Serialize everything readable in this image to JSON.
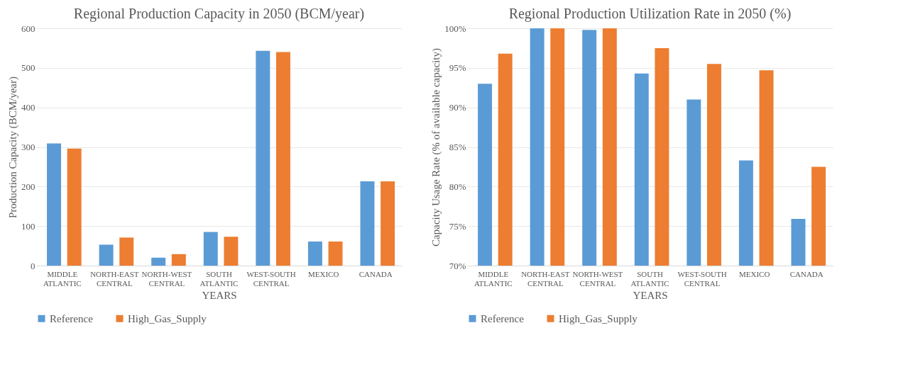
{
  "chart_data": [
    {
      "type": "bar",
      "title": "Regional Production Capacity in 2050 (BCM/year)",
      "xlabel": "YEARS",
      "ylabel": "Production Capacity (BCM/year)",
      "categories": [
        "MIDDLE ATLANTIC",
        "NORTH-EAST CENTRAL",
        "NORTH-WEST CENTRAL",
        "SOUTH ATLANTIC",
        "WEST-SOUTH CENTRAL",
        "MEXICO",
        "CANADA"
      ],
      "series": [
        {
          "name": "Reference",
          "color": "#5b9bd5",
          "values": [
            309,
            53,
            20,
            85,
            543,
            61,
            213
          ]
        },
        {
          "name": "High_Gas_Supply",
          "color": "#ed7d31",
          "values": [
            296,
            71,
            29,
            73,
            540,
            61,
            213
          ]
        }
      ],
      "ylim": [
        0,
        600
      ],
      "yticks": [
        0,
        100,
        200,
        300,
        400,
        500,
        600
      ],
      "grid": "y",
      "legend": "bottom"
    },
    {
      "type": "bar",
      "title": "Regional Production Utilization Rate in 2050 (%)",
      "xlabel": "YEARS",
      "ylabel": "Capacity Usage Rate (% of available capacity)",
      "categories": [
        "MIDDLE ATLANTIC",
        "NORTH-EAST CENTRAL",
        "NORTH-WEST CENTRAL",
        "SOUTH ATLANTIC",
        "WEST-SOUTH CENTRAL",
        "MEXICO",
        "CANADA"
      ],
      "series": [
        {
          "name": "Reference",
          "color": "#5b9bd5",
          "values": [
            93.0,
            100,
            99.8,
            94.3,
            91.0,
            83.3,
            75.9
          ]
        },
        {
          "name": "High_Gas_Supply",
          "color": "#ed7d31",
          "values": [
            96.8,
            100,
            100,
            97.5,
            95.5,
            94.7,
            82.5
          ]
        }
      ],
      "ylim": [
        70,
        100
      ],
      "yticks": [
        {
          "value": 70,
          "label": "70%"
        },
        {
          "value": 75,
          "label": "75%"
        },
        {
          "value": 80,
          "label": "80%"
        },
        {
          "value": 85,
          "label": "85%"
        },
        {
          "value": 90,
          "label": "90%"
        },
        {
          "value": 95,
          "label": "95%"
        },
        {
          "value": 100,
          "label": "100%"
        }
      ],
      "grid": "y",
      "legend": "bottom"
    }
  ]
}
